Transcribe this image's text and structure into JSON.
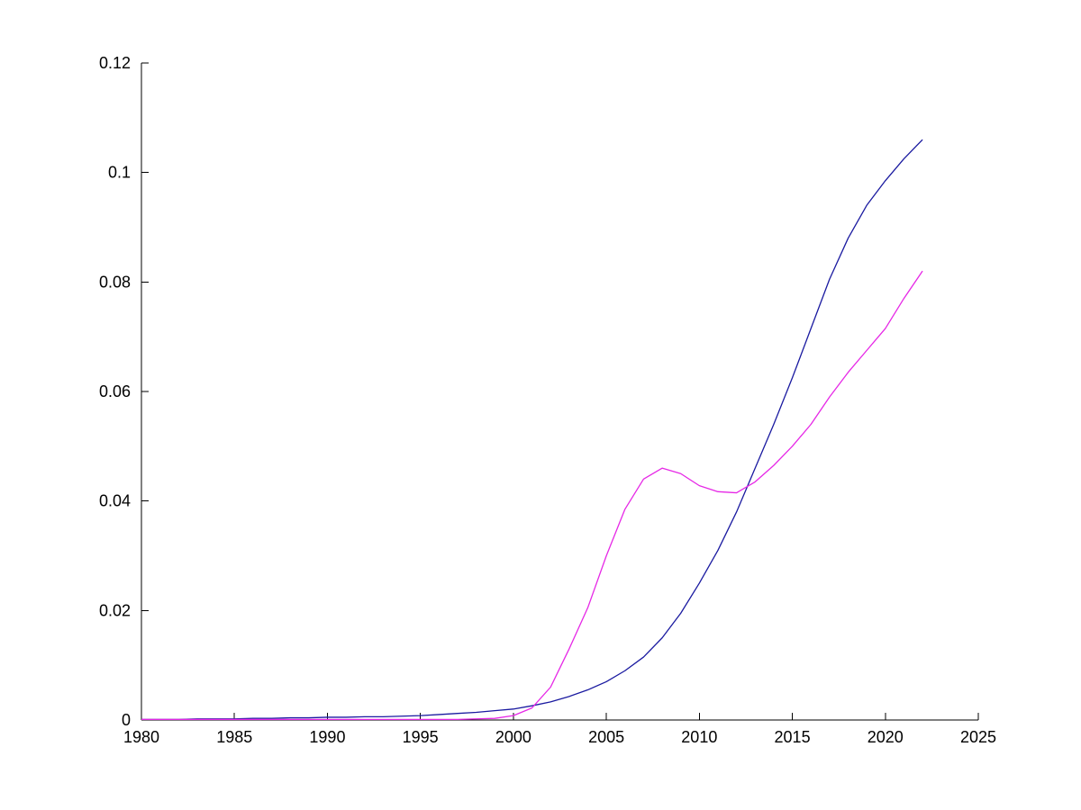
{
  "figure": {
    "background": "#ffffff",
    "axis_color": "#000000"
  },
  "chart_data": {
    "type": "line",
    "title": "",
    "xlabel": "",
    "ylabel": "",
    "grid": false,
    "box": false,
    "legend": "none",
    "xlim": [
      1980,
      2025
    ],
    "ylim": [
      0,
      0.12
    ],
    "x_ticks": [
      1980,
      1985,
      1990,
      1995,
      2000,
      2005,
      2010,
      2015,
      2020,
      2025
    ],
    "x_tick_labels": [
      "1980",
      "1985",
      "1990",
      "1995",
      "2000",
      "2005",
      "2010",
      "2015",
      "2020",
      "2025"
    ],
    "y_ticks": [
      0,
      0.02,
      0.04,
      0.06,
      0.08,
      0.1,
      0.12
    ],
    "y_tick_labels": [
      "0",
      "0.02",
      "0.04",
      "0.06",
      "0.08",
      "0.1",
      "0.12"
    ],
    "x": [
      1980,
      1981,
      1982,
      1983,
      1984,
      1985,
      1986,
      1987,
      1988,
      1989,
      1990,
      1991,
      1992,
      1993,
      1994,
      1995,
      1996,
      1997,
      1998,
      1999,
      2000,
      2001,
      2002,
      2003,
      2004,
      2005,
      2006,
      2007,
      2008,
      2009,
      2010,
      2011,
      2012,
      2013,
      2014,
      2015,
      2016,
      2017,
      2018,
      2019,
      2020,
      2021,
      2022
    ],
    "series": [
      {
        "name": "dark-blue-series",
        "color": "#1a1aa0",
        "values": [
          0.0001,
          0.0001,
          0.0001,
          0.0002,
          0.0002,
          0.0002,
          0.0003,
          0.0003,
          0.0004,
          0.0004,
          0.0005,
          0.0005,
          0.0006,
          0.0006,
          0.0007,
          0.0008,
          0.001,
          0.0012,
          0.0014,
          0.0017,
          0.002,
          0.0026,
          0.0033,
          0.0043,
          0.0055,
          0.007,
          0.009,
          0.0115,
          0.015,
          0.0195,
          0.025,
          0.031,
          0.038,
          0.046,
          0.054,
          0.0625,
          0.0715,
          0.0805,
          0.088,
          0.094,
          0.0985,
          0.1025,
          0.106
        ]
      },
      {
        "name": "magenta-series",
        "color": "#e628e6",
        "values": [
          0.0001,
          0.0001,
          0.0001,
          0.0001,
          0.0001,
          0.0001,
          0.0001,
          0.0001,
          0.0001,
          0.0001,
          0.0001,
          0.0001,
          0.0001,
          0.0001,
          0.0001,
          0.0001,
          0.0001,
          0.0001,
          0.0002,
          0.0003,
          0.0008,
          0.0022,
          0.006,
          0.013,
          0.0205,
          0.03,
          0.0385,
          0.044,
          0.046,
          0.045,
          0.0428,
          0.0417,
          0.0415,
          0.0435,
          0.0465,
          0.05,
          0.054,
          0.059,
          0.0635,
          0.0675,
          0.0715,
          0.077,
          0.082
        ]
      }
    ]
  }
}
